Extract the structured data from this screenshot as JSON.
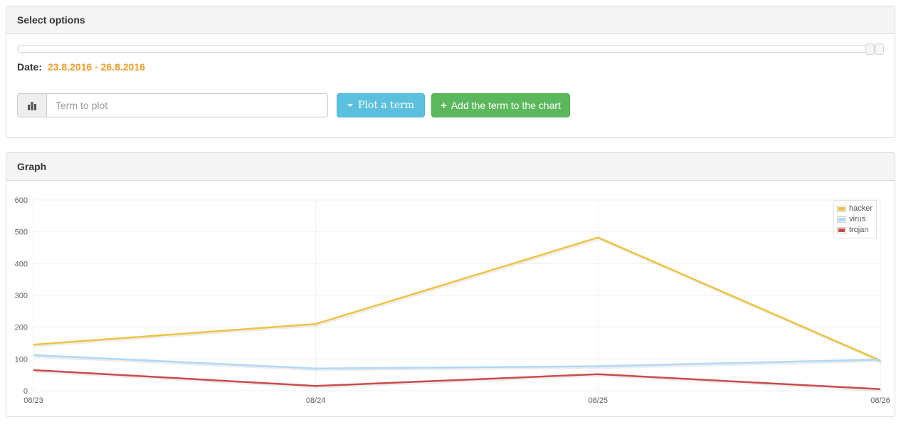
{
  "select_options": {
    "title": "Select options",
    "date_label": "Date:",
    "date_range": "23.8.2016 - 26.8.2016",
    "date_range_color": "#ef9c28",
    "term_placeholder": "Term to plot",
    "plot_button_label": "Plot a term",
    "add_button_label": "Add the term to the chart",
    "plot_button_color": "#5bc0de",
    "add_button_color": "#5cb85c",
    "icons": {
      "term_addon": "bar-chart-icon",
      "plot_button": "caret-down-icon",
      "add_button": "plus-icon",
      "plus_glyph": "+"
    }
  },
  "graph": {
    "title": "Graph"
  },
  "chart_data": {
    "type": "line",
    "categories": [
      "08/23",
      "08/24",
      "08/25",
      "08/26"
    ],
    "series": [
      {
        "name": "hacker",
        "color": "#edc240",
        "values": [
          145,
          210,
          482,
          95
        ]
      },
      {
        "name": "virus",
        "color": "#afd8f8",
        "values": [
          112,
          70,
          77,
          98
        ]
      },
      {
        "name": "trojan",
        "color": "#cb4b4b",
        "values": [
          65,
          15,
          52,
          5
        ]
      }
    ],
    "title": "",
    "xlabel": "",
    "ylabel": "",
    "ylim": [
      0,
      600
    ],
    "yticks": [
      0,
      100,
      200,
      300,
      400,
      500,
      600
    ],
    "grid": true,
    "gridline_color": "#f0f0f0",
    "tick_label_color": "#606060",
    "legend_position": "top-right"
  }
}
